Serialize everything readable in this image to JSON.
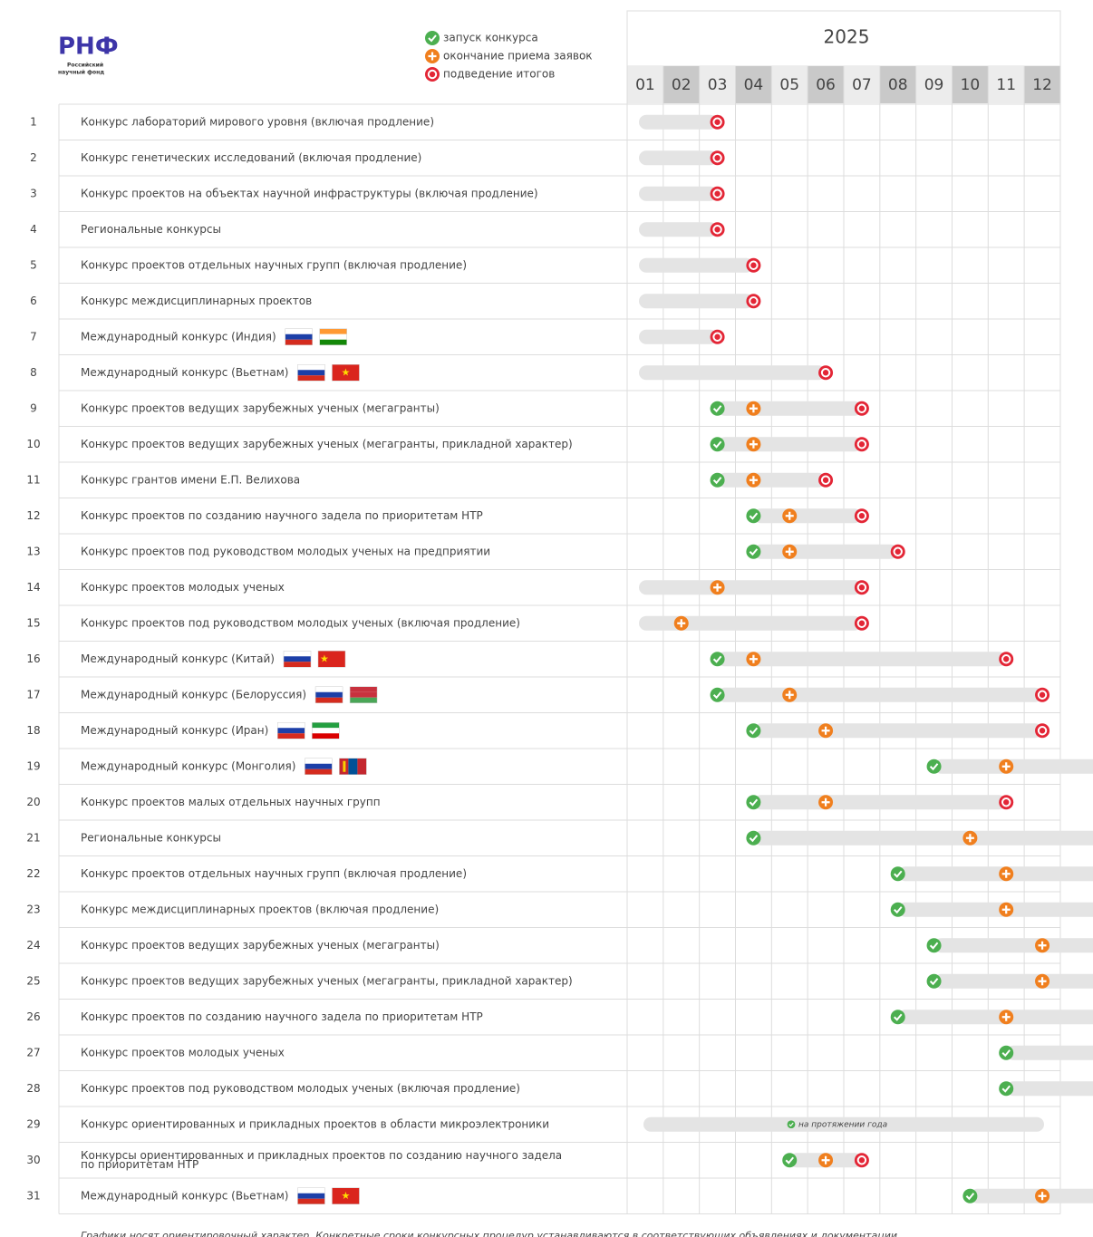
{
  "header": {
    "logo": "РНФ",
    "logo_subtitle": [
      "Российский",
      "научный фонд"
    ],
    "legend": {
      "launch": "запуск конкурса",
      "deadline": "окончание приема заявок",
      "result": "подведение итогов"
    },
    "year": "2025",
    "months": [
      "01",
      "02",
      "03",
      "04",
      "05",
      "06",
      "07",
      "08",
      "09",
      "10",
      "11",
      "12"
    ]
  },
  "rows": [
    {
      "number": "1",
      "name": "Конкурс лабораторий мирового уровня (включая продление)",
      "launch": null,
      "deadline": null,
      "result": 3
    },
    {
      "number": "2",
      "name": "Конкурс генетических исследований (включая продление)",
      "launch": null,
      "deadline": null,
      "result": 3
    },
    {
      "number": "3",
      "name": "Конкурс проектов на объектах научной инфраструктуры (включая продление)",
      "launch": null,
      "deadline": null,
      "result": 3
    },
    {
      "number": "4",
      "name": "Региональные конкурсы",
      "launch": null,
      "deadline": null,
      "result": 3
    },
    {
      "number": "5",
      "name": "Конкурс проектов отдельных научных групп (включая продление)",
      "launch": null,
      "deadline": null,
      "result": 4
    },
    {
      "number": "6",
      "name": "Конкурс междисциплинарных проектов",
      "launch": null,
      "deadline": null,
      "result": 4
    },
    {
      "number": "7",
      "name": "Международный конкурс (Индия)",
      "launch": null,
      "deadline": null,
      "result": 3
    },
    {
      "number": "8",
      "name": "Международный конкурс (Вьетнам)",
      "launch": null,
      "deadline": null,
      "result": 6
    },
    {
      "number": "9",
      "name": "Конкурс проектов ведущих зарубежных ученых (мегагранты)",
      "launch": 3,
      "deadline": 4,
      "result": 7
    },
    {
      "number": "10",
      "name": "Конкурс проектов ведущих зарубежных ученых (мегагранты, прикладной характер)",
      "launch": 3,
      "deadline": 4,
      "result": 7
    },
    {
      "number": "11",
      "name": "Конкурс грантов имени Е.П. Велихова",
      "launch": 3,
      "deadline": 4,
      "result": 6
    },
    {
      "number": "12",
      "name": "Конкурс проектов по созданию научного задела по приоритетам НТР",
      "launch": 4,
      "deadline": 5,
      "result": 7
    },
    {
      "number": "13",
      "name": "Конкурс проектов под руководством молодых ученых на предприятии",
      "launch": 4,
      "deadline": 5,
      "result": 8
    },
    {
      "number": "14",
      "name": "Конкурс проектов молодых ученых",
      "launch": null,
      "deadline": 3,
      "result": 7
    },
    {
      "number": "15",
      "name": "Конкурс проектов под руководством молодых ученых (включая продление)",
      "launch": null,
      "deadline": 2,
      "result": 7
    },
    {
      "number": "16",
      "name": "Международный конкурс (Китай)",
      "launch": 3,
      "deadline": 4,
      "result": 11
    },
    {
      "number": "17",
      "name": "Международный конкурс (Белоруссия)",
      "launch": 3,
      "deadline": 5,
      "result": 12
    },
    {
      "number": "18",
      "name": "Международный конкурс (Иран)",
      "launch": 4,
      "deadline": 6,
      "result": 12
    },
    {
      "number": "19",
      "name": "Международный конкурс (Монголия)",
      "launch": 9,
      "deadline": 11,
      "result": null
    },
    {
      "number": "20",
      "name": "Конкурс проектов малых отдельных научных групп",
      "launch": 4,
      "deadline": 6,
      "result": 11
    },
    {
      "number": "21",
      "name": "Региональные конкурсы",
      "launch": 4,
      "deadline": 10,
      "result": null
    },
    {
      "number": "22",
      "name": "Конкурс проектов отдельных научных групп (включая продление)",
      "launch": 8,
      "deadline": 11,
      "result": null
    },
    {
      "number": "23",
      "name": "Конкурс междисциплинарных проектов (включая продление)",
      "launch": 8,
      "deadline": 11,
      "result": null
    },
    {
      "number": "24",
      "name": "Конкурс проектов ведущих зарубежных ученых (мегагранты)",
      "launch": 9,
      "deadline": 12,
      "result": null
    },
    {
      "number": "25",
      "name": "Конкурс проектов ведущих зарубежных ученых (мегагранты, прикладной характер)",
      "launch": 9,
      "deadline": 12,
      "result": null
    },
    {
      "number": "26",
      "name": "Конкурс проектов по созданию научного задела по приоритетам НТР",
      "launch": 8,
      "deadline": 11,
      "result": null
    },
    {
      "number": "27",
      "name": "Конкурс проектов молодых ученых",
      "launch": 11,
      "deadline": null,
      "result": null
    },
    {
      "number": "28",
      "name": "Конкурс проектов под руководством молодых ученых (включая продление)",
      "launch": 11,
      "deadline": null,
      "result": null
    },
    {
      "number": "29",
      "name": "Конкурс ориентированных и прикладных проектов в области микроэлектроники",
      "all_year": "на протяжении года"
    },
    {
      "number": "30",
      "name": [
        "Конкурсы ориентированных и прикладных проектов по созданию научного задела",
        "по приоритетам НТР"
      ],
      "launch": 5,
      "deadline": 6,
      "result": 7
    },
    {
      "number": "31",
      "name": "Международный конкурс (Вьетнам)",
      "launch": 10,
      "deadline": 12,
      "result": null
    }
  ],
  "footer": "Графики носят ориентировочный характер. Конкретные сроки конкурсных процедур устанавливаются в соответствующих объявлениях и документации"
}
